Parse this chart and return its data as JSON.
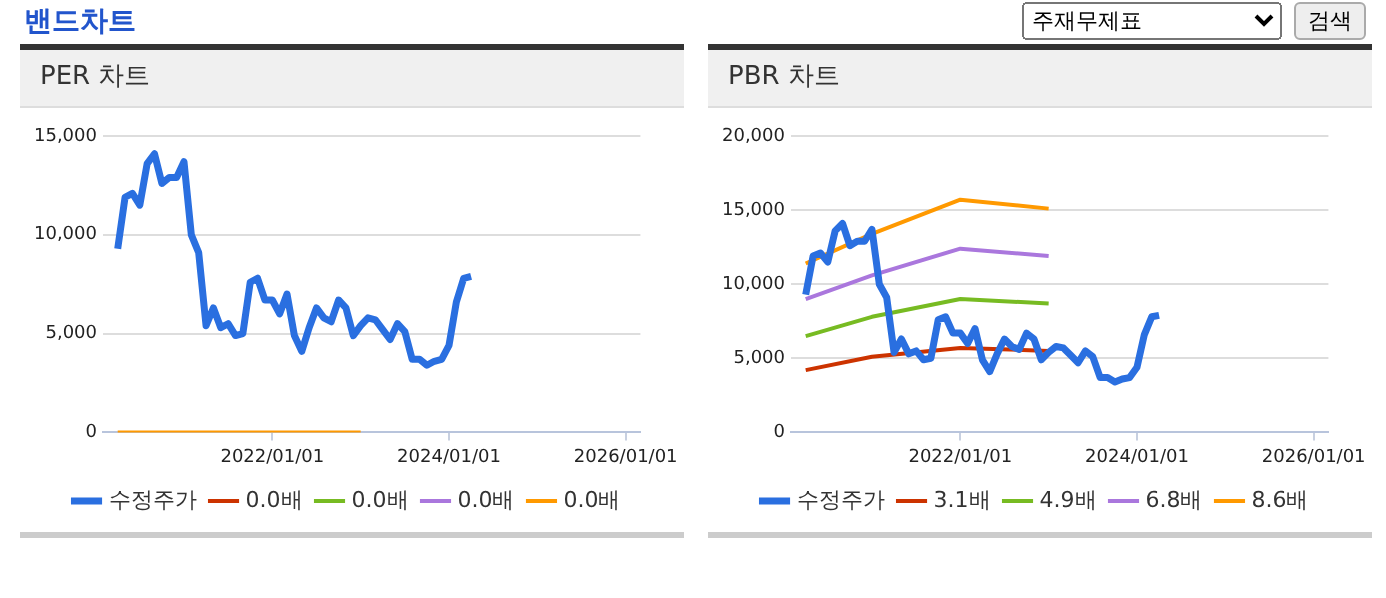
{
  "chart_data": [
    {
      "type": "line",
      "title": "PER 차트",
      "annotations": [
        "밴드차트"
      ],
      "xlim": [
        "2020-02",
        "2026-03"
      ],
      "xticks": [
        {
          "value": "2022-01-01",
          "label": "2022/01/01"
        },
        {
          "value": "2024-01-01",
          "label": "2024/01/01"
        },
        {
          "value": "2026-01-01",
          "label": "2026/01/01"
        }
      ],
      "ylim": [
        0,
        15000
      ],
      "yticks": [
        0,
        {
          "value": 5000,
          "label": "5,000"
        },
        {
          "value": 10000,
          "label": "10,000"
        },
        {
          "value": 15000,
          "label": "15,000"
        }
      ],
      "grid": "y",
      "legend": "bottom",
      "marker": "none",
      "line_style": "solid",
      "series": [
        {
          "name": "수정주가",
          "color": "#2a6fe0",
          "x": [
            "2020-04",
            "2020-05",
            "2020-06",
            "2020-07",
            "2020-08",
            "2020-09",
            "2020-10",
            "2020-11",
            "2020-12",
            "2021-01",
            "2021-02",
            "2021-03",
            "2021-04",
            "2021-05",
            "2021-06",
            "2021-07",
            "2021-08",
            "2021-09",
            "2021-10",
            "2021-11",
            "2021-12",
            "2022-01",
            "2022-02",
            "2022-03",
            "2022-04",
            "2022-05",
            "2022-06",
            "2022-07",
            "2022-08",
            "2022-09",
            "2022-10",
            "2022-11",
            "2022-12",
            "2023-01",
            "2023-02",
            "2023-03",
            "2023-04",
            "2023-05",
            "2023-06",
            "2023-07",
            "2023-08",
            "2023-09",
            "2023-10",
            "2023-11",
            "2023-12",
            "2024-01",
            "2024-02",
            "2024-03",
            "2024-04"
          ],
          "values": [
            9300,
            11900,
            12100,
            11500,
            13600,
            14100,
            12600,
            12900,
            12900,
            13700,
            10000,
            9100,
            5400,
            6300,
            5300,
            5500,
            4900,
            5000,
            7600,
            7800,
            6700,
            6700,
            6000,
            7000,
            4900,
            4100,
            5300,
            6300,
            5800,
            5600,
            6700,
            6300,
            4900,
            5400,
            5800,
            5700,
            5200,
            4700,
            5500,
            5100,
            3700,
            3700,
            3400,
            3600,
            3700,
            4400,
            6600,
            7800,
            7900
          ]
        },
        {
          "name": "0.0배",
          "color": "#cc3300"
        },
        {
          "name": "0.0배",
          "color": "#77bb22"
        },
        {
          "name": "0.0배",
          "color": "#aa77dd"
        },
        {
          "name": "0.0배",
          "color": "#ff9900",
          "x": [
            "2020-04",
            "2021-01",
            "2022-01",
            "2023-01"
          ],
          "values": [
            0,
            0,
            0,
            0
          ]
        }
      ]
    },
    {
      "type": "line",
      "title": "PBR 차트",
      "annotations": [
        "주재무제표",
        "검색"
      ],
      "xlim": [
        "2020-02",
        "2026-03"
      ],
      "xticks": [
        {
          "value": "2022-01-01",
          "label": "2022/01/01"
        },
        {
          "value": "2024-01-01",
          "label": "2024/01/01"
        },
        {
          "value": "2026-01-01",
          "label": "2026/01/01"
        }
      ],
      "ylim": [
        0,
        20000
      ],
      "yticks": [
        0,
        {
          "value": 5000,
          "label": "5,000"
        },
        {
          "value": 10000,
          "label": "10,000"
        },
        {
          "value": 15000,
          "label": "15,000"
        },
        {
          "value": 20000,
          "label": "20,000"
        }
      ],
      "grid": "y",
      "legend": "bottom",
      "marker": "none",
      "line_style": "solid",
      "series": [
        {
          "name": "수정주가",
          "color": "#2a6fe0",
          "x": [
            "2020-04",
            "2020-05",
            "2020-06",
            "2020-07",
            "2020-08",
            "2020-09",
            "2020-10",
            "2020-11",
            "2020-12",
            "2021-01",
            "2021-02",
            "2021-03",
            "2021-04",
            "2021-05",
            "2021-06",
            "2021-07",
            "2021-08",
            "2021-09",
            "2021-10",
            "2021-11",
            "2021-12",
            "2022-01",
            "2022-02",
            "2022-03",
            "2022-04",
            "2022-05",
            "2022-06",
            "2022-07",
            "2022-08",
            "2022-09",
            "2022-10",
            "2022-11",
            "2022-12",
            "2023-01",
            "2023-02",
            "2023-03",
            "2023-04",
            "2023-05",
            "2023-06",
            "2023-07",
            "2023-08",
            "2023-09",
            "2023-10",
            "2023-11",
            "2023-12",
            "2024-01",
            "2024-02",
            "2024-03",
            "2024-04"
          ],
          "values": [
            9300,
            11900,
            12100,
            11500,
            13600,
            14100,
            12600,
            12900,
            12900,
            13700,
            10000,
            9100,
            5400,
            6300,
            5300,
            5500,
            4900,
            5000,
            7600,
            7800,
            6700,
            6700,
            6000,
            7000,
            4900,
            4100,
            5300,
            6300,
            5800,
            5600,
            6700,
            6300,
            4900,
            5400,
            5800,
            5700,
            5200,
            4700,
            5500,
            5100,
            3700,
            3700,
            3400,
            3600,
            3700,
            4400,
            6600,
            7800,
            7900
          ]
        },
        {
          "name": "3.1배",
          "color": "#cc3300",
          "x": [
            "2020-04",
            "2021-01",
            "2022-01",
            "2023-01"
          ],
          "values": [
            4200,
            5100,
            5700,
            5500
          ]
        },
        {
          "name": "4.9배",
          "color": "#77bb22",
          "x": [
            "2020-04",
            "2021-01",
            "2022-01",
            "2023-01"
          ],
          "values": [
            6500,
            7800,
            9000,
            8700
          ]
        },
        {
          "name": "6.8배",
          "color": "#aa77dd",
          "x": [
            "2020-04",
            "2021-01",
            "2022-01",
            "2023-01"
          ],
          "values": [
            9000,
            10600,
            12400,
            11900
          ]
        },
        {
          "name": "8.6배",
          "color": "#ff9900",
          "x": [
            "2020-04",
            "2021-01",
            "2022-01",
            "2023-01"
          ],
          "values": [
            11400,
            13400,
            15700,
            15100
          ]
        }
      ]
    }
  ]
}
